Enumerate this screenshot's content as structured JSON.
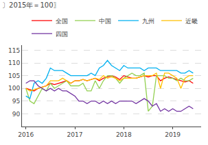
{
  "chart_data": {
    "type": "line",
    "title": "〕2015年＝100〗",
    "x": [
      2016,
      2016.0833333333333,
      2016.1666666666667,
      2016.25,
      2016.3333333333333,
      2016.4166666666667,
      2016.5,
      2016.5833333333333,
      2016.6666666666667,
      2016.75,
      2016.8333333333333,
      2016.9166666666667,
      2017,
      2017.0833333333333,
      2017.1666666666667,
      2017.25,
      2017.3333333333333,
      2017.4166666666667,
      2017.5,
      2017.5833333333333,
      2017.6666666666667,
      2017.75,
      2017.8333333333333,
      2017.9166666666667,
      2018,
      2018.0833333333333,
      2018.1666666666667,
      2018.25,
      2018.3333333333333,
      2018.4166666666667,
      2018.5,
      2018.5833333333333,
      2018.6666666666667,
      2018.75,
      2018.8333333333333,
      2018.9166666666667,
      2019,
      2019.0833333333333,
      2019.1666666666667,
      2019.25,
      2019.3333333333333,
      2019.4166666666667
    ],
    "series": [
      {
        "name": "全国",
        "color": "#ff0000",
        "values": [
          100,
          99.5,
          99,
          100,
          100.5,
          101,
          102,
          101.5,
          102,
          102.5,
          103,
          102,
          103,
          103,
          103.5,
          103,
          103.5,
          104,
          103,
          104,
          104.5,
          105,
          104.5,
          103.5,
          105,
          104.5,
          104,
          104,
          104.5,
          105,
          104.5,
          105,
          105,
          103,
          104,
          104.5,
          104,
          103.5,
          103,
          102.5,
          103,
          102
        ]
      },
      {
        "name": "中国",
        "color": "#92d050",
        "values": [
          100,
          95,
          94,
          97,
          100,
          99,
          102,
          100,
          101,
          102,
          103,
          101,
          101,
          101,
          102,
          99,
          99,
          103,
          100,
          103,
          105,
          105,
          104,
          102,
          104,
          105,
          106,
          105,
          105,
          106,
          91,
          93,
          105,
          105,
          105,
          104,
          104,
          103,
          104,
          103,
          103,
          104
        ]
      },
      {
        "name": "九州",
        "color": "#00b0f0",
        "values": [
          97,
          96,
          102,
          103,
          102,
          104,
          108,
          107,
          107,
          107,
          106,
          105,
          105,
          105,
          105,
          105,
          106,
          105,
          108,
          109,
          111,
          109,
          108,
          107,
          109,
          108,
          108,
          108,
          108,
          107,
          108,
          108,
          108,
          107,
          107,
          107,
          107,
          107,
          106,
          106,
          107,
          106
        ]
      },
      {
        "name": "近畿",
        "color": "#ffc000",
        "values": [
          100,
          99,
          99.5,
          100,
          100.5,
          101,
          103,
          103,
          103,
          104,
          103,
          102,
          103,
          103,
          103.5,
          103,
          103.5,
          104,
          103.5,
          105,
          104,
          104.5,
          104,
          103,
          104,
          104,
          104,
          104,
          104.5,
          105,
          105,
          105,
          106,
          100,
          106,
          106,
          105,
          104,
          100,
          104,
          105,
          105
        ]
      },
      {
        "name": "四国",
        "color": "#7030a0",
        "values": [
          102,
          103,
          103,
          101,
          100,
          99,
          100,
          99,
          100,
          99,
          99,
          98,
          97,
          95,
          95,
          94,
          95,
          95,
          94,
          95,
          94,
          95,
          94,
          95,
          95,
          95,
          95,
          94,
          95,
          96,
          95,
          93,
          94,
          91,
          92,
          91,
          92,
          91,
          91,
          92,
          93,
          92
        ]
      }
    ],
    "xlim": [
      2015.92,
      2019.58
    ],
    "xticks": [
      2016,
      2017,
      2018,
      2019
    ],
    "ylim": [
      85,
      117
    ],
    "yticks": [
      90,
      95,
      100,
      105,
      110,
      115
    ],
    "grid": true,
    "legend": "upper right"
  }
}
